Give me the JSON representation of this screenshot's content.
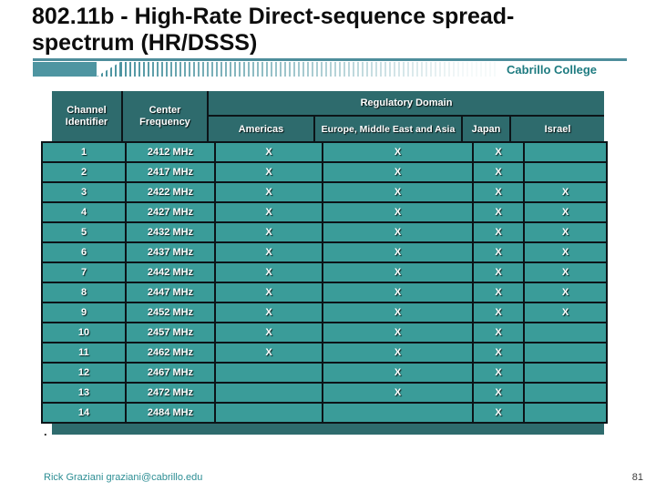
{
  "slide": {
    "title_line1": "802.11b - High-Rate Direct-sequence spread-",
    "title_line2": "spectrum (HR/DSSS)",
    "brand": "Cabrillo College",
    "stray_bullet": ".",
    "footer_author": "Rick Graziani  graziani@cabrillo.edu",
    "page_number": "81"
  },
  "colors": {
    "header_teal": "#2e6b6d",
    "row_teal": "#3a9c99",
    "accent_teal": "#4e95a1",
    "brand_text": "#1e7b80",
    "footer_text": "#2d8e94",
    "grid_line": "#0c1418"
  },
  "table": {
    "header": {
      "channel": "Channel Identifier",
      "frequency": "Center Frequency",
      "regulatory": "Regulatory Domain",
      "domains": [
        "Americas",
        "Europe, Middle East and Asia",
        "Japan",
        "Israel"
      ]
    },
    "rows": [
      {
        "channel": "1",
        "freq": "2412 MHz",
        "marks": [
          "X",
          "X",
          "X",
          ""
        ]
      },
      {
        "channel": "2",
        "freq": "2417 MHz",
        "marks": [
          "X",
          "X",
          "X",
          ""
        ]
      },
      {
        "channel": "3",
        "freq": "2422 MHz",
        "marks": [
          "X",
          "X",
          "X",
          "X"
        ]
      },
      {
        "channel": "4",
        "freq": "2427 MHz",
        "marks": [
          "X",
          "X",
          "X",
          "X"
        ]
      },
      {
        "channel": "5",
        "freq": "2432 MHz",
        "marks": [
          "X",
          "X",
          "X",
          "X"
        ]
      },
      {
        "channel": "6",
        "freq": "2437 MHz",
        "marks": [
          "X",
          "X",
          "X",
          "X"
        ]
      },
      {
        "channel": "7",
        "freq": "2442 MHz",
        "marks": [
          "X",
          "X",
          "X",
          "X"
        ]
      },
      {
        "channel": "8",
        "freq": "2447 MHz",
        "marks": [
          "X",
          "X",
          "X",
          "X"
        ]
      },
      {
        "channel": "9",
        "freq": "2452 MHz",
        "marks": [
          "X",
          "X",
          "X",
          "X"
        ]
      },
      {
        "channel": "10",
        "freq": "2457 MHz",
        "marks": [
          "X",
          "X",
          "X",
          ""
        ]
      },
      {
        "channel": "11",
        "freq": "2462 MHz",
        "marks": [
          "X",
          "X",
          "X",
          ""
        ]
      },
      {
        "channel": "12",
        "freq": "2467 MHz",
        "marks": [
          "",
          "X",
          "X",
          ""
        ]
      },
      {
        "channel": "13",
        "freq": "2472 MHz",
        "marks": [
          "",
          "X",
          "X",
          ""
        ]
      },
      {
        "channel": "14",
        "freq": "2484 MHz",
        "marks": [
          "",
          "",
          "X",
          ""
        ]
      }
    ]
  }
}
